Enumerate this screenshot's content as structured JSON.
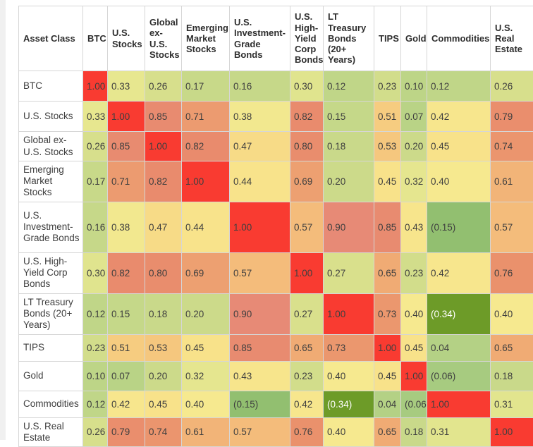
{
  "page": {
    "background": "#ffffff",
    "left_gutter_color": "#f0f0f0"
  },
  "chart_data": {
    "type": "heatmap",
    "title": "",
    "corner_label": "Asset Class",
    "categories": [
      "BTC",
      "U.S. Stocks",
      "Global ex-U.S. Stocks",
      "Emerging Market Stocks",
      "U.S. Investment-Grade Bonds",
      "U.S. High-Yield Corp Bonds",
      "LT Treasury Bonds (20+ Years)",
      "TIPS",
      "Gold",
      "Commodities",
      "U.S. Real Estate"
    ],
    "matrix": [
      [
        1.0,
        0.33,
        0.26,
        0.17,
        0.16,
        0.3,
        0.12,
        0.23,
        0.1,
        0.12,
        0.26
      ],
      [
        0.33,
        1.0,
        0.85,
        0.71,
        0.38,
        0.82,
        0.15,
        0.51,
        0.07,
        0.42,
        0.79
      ],
      [
        0.26,
        0.85,
        1.0,
        0.82,
        0.47,
        0.8,
        0.18,
        0.53,
        0.2,
        0.45,
        0.74
      ],
      [
        0.17,
        0.71,
        0.82,
        1.0,
        0.44,
        0.69,
        0.2,
        0.45,
        0.32,
        0.4,
        0.61
      ],
      [
        0.16,
        0.38,
        0.47,
        0.44,
        1.0,
        0.57,
        0.9,
        0.85,
        0.43,
        -0.15,
        0.57
      ],
      [
        0.3,
        0.82,
        0.8,
        0.69,
        0.57,
        1.0,
        0.27,
        0.65,
        0.23,
        0.42,
        0.76
      ],
      [
        0.12,
        0.15,
        0.18,
        0.2,
        0.9,
        0.27,
        1.0,
        0.73,
        0.4,
        -0.34,
        0.4
      ],
      [
        0.23,
        0.51,
        0.53,
        0.45,
        0.85,
        0.65,
        0.73,
        1.0,
        0.45,
        0.04,
        0.65
      ],
      [
        0.1,
        0.07,
        0.2,
        0.32,
        0.43,
        0.23,
        0.4,
        0.45,
        1.0,
        -0.06,
        0.18
      ],
      [
        0.12,
        0.42,
        0.45,
        0.4,
        -0.15,
        0.42,
        -0.34,
        0.04,
        -0.06,
        1.0,
        0.31
      ],
      [
        0.26,
        0.79,
        0.74,
        0.61,
        0.57,
        0.76,
        0.4,
        0.65,
        0.18,
        0.31,
        1.0
      ]
    ],
    "value_format": "two_decimals_negatives_in_parentheses",
    "legend_position": "none",
    "grid": true,
    "color_scale": {
      "diagonal_color": "#f93b31",
      "text_color": "#3f3f3f",
      "negative_text_color": "#ffffff",
      "white_text_below": -0.25,
      "anchors": [
        [
          -0.34,
          "#6d9b28"
        ],
        [
          -0.15,
          "#92bf70"
        ],
        [
          -0.06,
          "#a7cb80"
        ],
        [
          0.04,
          "#b4d185"
        ],
        [
          0.12,
          "#c0d688"
        ],
        [
          0.2,
          "#ccda8a"
        ],
        [
          0.27,
          "#d9e08c"
        ],
        [
          0.33,
          "#e7e78f"
        ],
        [
          0.4,
          "#f6e98f"
        ],
        [
          0.45,
          "#f8e28a"
        ],
        [
          0.51,
          "#f6cc80"
        ],
        [
          0.57,
          "#f4bc7b"
        ],
        [
          0.65,
          "#f0ab74"
        ],
        [
          0.71,
          "#ec9b70"
        ],
        [
          0.76,
          "#ea916c"
        ],
        [
          0.82,
          "#e98b6d"
        ],
        [
          0.9,
          "#e78a76"
        ],
        [
          0.99,
          "#e78a78"
        ]
      ]
    }
  }
}
